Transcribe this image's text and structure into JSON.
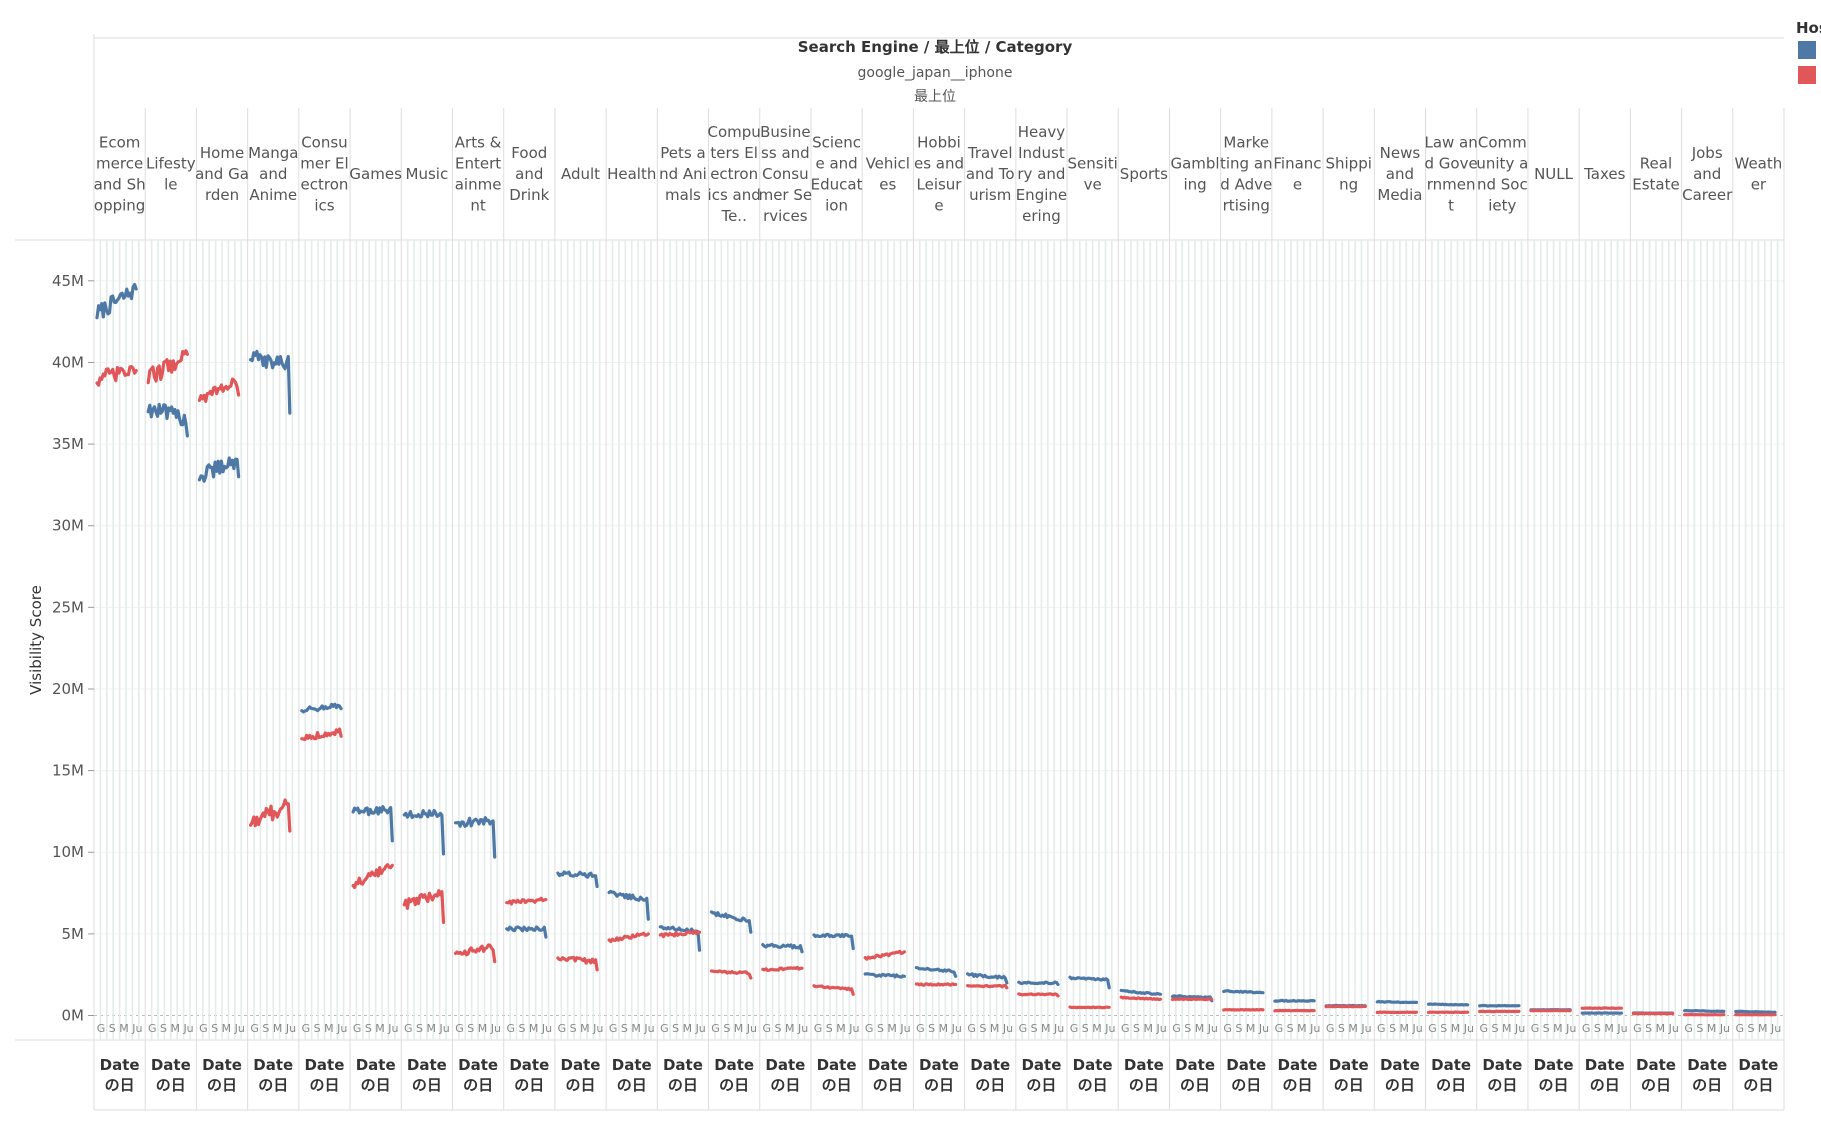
{
  "header": {
    "title": "Search Engine / 最上位 / Category",
    "engine": "google_japan__iphone",
    "level": "最上位"
  },
  "legend": {
    "title": "Hos",
    "colors": [
      "#4e79a7",
      "#e15759"
    ]
  },
  "footer": {
    "line1": "Date",
    "line2": "の日",
    "mini": "G S M Ju"
  },
  "chart_data": {
    "type": "line",
    "title": "",
    "ylabel": "Visibility Score",
    "ylim": [
      -1500000,
      47500000
    ],
    "yticks": [
      0,
      5000000,
      10000000,
      15000000,
      20000000,
      25000000,
      30000000,
      35000000,
      40000000,
      45000000
    ],
    "ytick_labels": [
      "0M",
      "5M",
      "10M",
      "15M",
      "20M",
      "25M",
      "30M",
      "35M",
      "40M",
      "45M"
    ],
    "legend_position": "top-right",
    "series_colors": [
      "#4e79a7",
      "#e15759"
    ],
    "categories": [
      {
        "label": "Ecommerce and Shopping",
        "lines": [
          "Ecom",
          "merce",
          "and Sh",
          "opping"
        ],
        "blue": {
          "start": 43.0,
          "end": 44.5,
          "drop": 0,
          "noise": 1.0
        },
        "red": {
          "start": 39.0,
          "end": 39.5,
          "drop": 0,
          "noise": 1.0
        }
      },
      {
        "label": "Lifestyle",
        "lines": [
          "Lifesty",
          "le"
        ],
        "blue": {
          "start": 37.2,
          "end": 36.5,
          "drop": 1.0,
          "noise": 1.0
        },
        "red": {
          "start": 39.0,
          "end": 40.5,
          "drop": 0,
          "noise": 1.1
        }
      },
      {
        "label": "Home and Garden",
        "lines": [
          "Home",
          "and Ga",
          "rden"
        ],
        "blue": {
          "start": 33.0,
          "end": 34.0,
          "drop": 1.0,
          "noise": 1.0
        },
        "red": {
          "start": 37.8,
          "end": 38.8,
          "drop": 0.8,
          "noise": 0.7
        }
      },
      {
        "label": "Manga and Anime",
        "lines": [
          "Manga",
          "and",
          "Anime"
        ],
        "blue": {
          "start": 40.3,
          "end": 39.9,
          "drop": 3.0,
          "noise": 0.9
        },
        "red": {
          "start": 11.8,
          "end": 13.0,
          "drop": 1.7,
          "noise": 1.0
        }
      },
      {
        "label": "Consumer Electronics",
        "lines": [
          "Consu",
          "mer El",
          "ectron",
          "ics"
        ],
        "blue": {
          "start": 18.7,
          "end": 19.0,
          "drop": 0.2,
          "noise": 0.3
        },
        "red": {
          "start": 17.0,
          "end": 17.4,
          "drop": 0.3,
          "noise": 0.4
        }
      },
      {
        "label": "Games",
        "lines": [
          "Games"
        ],
        "blue": {
          "start": 12.5,
          "end": 12.6,
          "drop": 1.9,
          "noise": 0.5
        },
        "red": {
          "start": 8.0,
          "end": 9.2,
          "drop": 0,
          "noise": 0.5
        }
      },
      {
        "label": "Music",
        "lines": [
          "Music"
        ],
        "blue": {
          "start": 12.3,
          "end": 12.4,
          "drop": 2.5,
          "noise": 0.4
        },
        "red": {
          "start": 6.8,
          "end": 7.5,
          "drop": 1.8,
          "noise": 0.6
        }
      },
      {
        "label": "Arts & Entertainment",
        "lines": [
          "Arts &",
          "Entert",
          "ainme",
          "nt"
        ],
        "blue": {
          "start": 11.8,
          "end": 11.9,
          "drop": 2.2,
          "noise": 0.5
        },
        "red": {
          "start": 3.8,
          "end": 4.2,
          "drop": 0.9,
          "noise": 0.4
        }
      },
      {
        "label": "Food and Drink",
        "lines": [
          "Food",
          "and",
          "Drink"
        ],
        "blue": {
          "start": 5.3,
          "end": 5.3,
          "drop": 0.5,
          "noise": 0.25
        },
        "red": {
          "start": 6.9,
          "end": 7.1,
          "drop": 0,
          "noise": 0.25
        }
      },
      {
        "label": "Adult",
        "lines": [
          "Adult"
        ],
        "blue": {
          "start": 8.7,
          "end": 8.6,
          "drop": 0.7,
          "noise": 0.3
        },
        "red": {
          "start": 3.5,
          "end": 3.3,
          "drop": 0.5,
          "noise": 0.3
        }
      },
      {
        "label": "Health",
        "lines": [
          "Health"
        ],
        "blue": {
          "start": 7.5,
          "end": 7.1,
          "drop": 1.2,
          "noise": 0.3
        },
        "red": {
          "start": 4.6,
          "end": 5.0,
          "drop": 0,
          "noise": 0.2
        }
      },
      {
        "label": "Pets and Animals",
        "lines": [
          "Pets a",
          "nd Ani",
          "mals"
        ],
        "blue": {
          "start": 5.4,
          "end": 5.2,
          "drop": 1.2,
          "noise": 0.2
        },
        "red": {
          "start": 4.9,
          "end": 5.1,
          "drop": 0,
          "noise": 0.2
        }
      },
      {
        "label": "Computers Electronics and Technology",
        "lines": [
          "Compu",
          "ters El",
          "ectron",
          "ics and",
          "Te.."
        ],
        "blue": {
          "start": 6.3,
          "end": 5.8,
          "drop": 0.7,
          "noise": 0.25
        },
        "red": {
          "start": 2.7,
          "end": 2.6,
          "drop": 0.3,
          "noise": 0.12
        }
      },
      {
        "label": "Business and Consumer Services",
        "lines": [
          "Busine",
          "ss and",
          "Consu",
          "mer Se",
          "rvices"
        ],
        "blue": {
          "start": 4.3,
          "end": 4.2,
          "drop": 0.3,
          "noise": 0.2
        },
        "red": {
          "start": 2.8,
          "end": 2.9,
          "drop": 0,
          "noise": 0.12
        }
      },
      {
        "label": "Science and Education",
        "lines": [
          "Scienc",
          "e and",
          "Educat",
          "ion"
        ],
        "blue": {
          "start": 4.9,
          "end": 4.9,
          "drop": 0.8,
          "noise": 0.15
        },
        "red": {
          "start": 1.8,
          "end": 1.6,
          "drop": 0.3,
          "noise": 0.1
        }
      },
      {
        "label": "Vehicles",
        "lines": [
          "Vehicl",
          "es"
        ],
        "blue": {
          "start": 2.5,
          "end": 2.4,
          "drop": 0,
          "noise": 0.15
        },
        "red": {
          "start": 3.5,
          "end": 3.9,
          "drop": 0,
          "noise": 0.15
        }
      },
      {
        "label": "Hobbies and Leisure",
        "lines": [
          "Hobbi",
          "es and",
          "Leisur",
          "e"
        ],
        "blue": {
          "start": 2.9,
          "end": 2.7,
          "drop": 0.3,
          "noise": 0.1
        },
        "red": {
          "start": 1.9,
          "end": 1.9,
          "drop": 0,
          "noise": 0.08
        }
      },
      {
        "label": "Travel and Tourism",
        "lines": [
          "Travel",
          "and To",
          "urism"
        ],
        "blue": {
          "start": 2.5,
          "end": 2.3,
          "drop": 0.3,
          "noise": 0.15
        },
        "red": {
          "start": 1.8,
          "end": 1.8,
          "drop": 0.1,
          "noise": 0.08
        }
      },
      {
        "label": "Heavy Industry and Engineering",
        "lines": [
          "Heavy",
          "Indust",
          "ry and",
          "Engine",
          "ering"
        ],
        "blue": {
          "start": 2.0,
          "end": 2.0,
          "drop": 0.1,
          "noise": 0.1
        },
        "red": {
          "start": 1.3,
          "end": 1.3,
          "drop": 0.1,
          "noise": 0.06
        }
      },
      {
        "label": "Sensitive",
        "lines": [
          "Sensiti",
          "ve"
        ],
        "blue": {
          "start": 2.3,
          "end": 2.2,
          "drop": 0.5,
          "noise": 0.1
        },
        "red": {
          "start": 0.5,
          "end": 0.5,
          "drop": 0,
          "noise": 0.04
        }
      },
      {
        "label": "Sports",
        "lines": [
          "Sports"
        ],
        "blue": {
          "start": 1.5,
          "end": 1.3,
          "drop": 0,
          "noise": 0.08
        },
        "red": {
          "start": 1.1,
          "end": 1.0,
          "drop": 0,
          "noise": 0.06
        }
      },
      {
        "label": "Gambling",
        "lines": [
          "Gambl",
          "ing"
        ],
        "blue": {
          "start": 1.2,
          "end": 1.1,
          "drop": 0.2,
          "noise": 0.07
        },
        "red": {
          "start": 1.0,
          "end": 1.0,
          "drop": 0,
          "noise": 0.05
        }
      },
      {
        "label": "Marketing and Advertising",
        "lines": [
          "Marke",
          "ting an",
          "d Adve",
          "rtising"
        ],
        "blue": {
          "start": 1.5,
          "end": 1.4,
          "drop": 0,
          "noise": 0.07
        },
        "red": {
          "start": 0.35,
          "end": 0.35,
          "drop": 0,
          "noise": 0.03
        }
      },
      {
        "label": "Finance",
        "lines": [
          "Financ",
          "e"
        ],
        "blue": {
          "start": 0.9,
          "end": 0.9,
          "drop": 0,
          "noise": 0.05
        },
        "red": {
          "start": 0.3,
          "end": 0.3,
          "drop": 0,
          "noise": 0.03
        }
      },
      {
        "label": "Shipping",
        "lines": [
          "Shippi",
          "ng"
        ],
        "blue": {
          "start": 0.6,
          "end": 0.6,
          "drop": 0,
          "noise": 0.04
        },
        "red": {
          "start": 0.55,
          "end": 0.55,
          "drop": 0,
          "noise": 0.03
        }
      },
      {
        "label": "News and Media",
        "lines": [
          "News",
          "and",
          "Media"
        ],
        "blue": {
          "start": 0.85,
          "end": 0.8,
          "drop": 0,
          "noise": 0.05
        },
        "red": {
          "start": 0.2,
          "end": 0.2,
          "drop": 0,
          "noise": 0.03
        }
      },
      {
        "label": "Law and Government",
        "lines": [
          "Law an",
          "d Gove",
          "rnmen",
          "t"
        ],
        "blue": {
          "start": 0.7,
          "end": 0.65,
          "drop": 0,
          "noise": 0.04
        },
        "red": {
          "start": 0.2,
          "end": 0.2,
          "drop": 0,
          "noise": 0.03
        }
      },
      {
        "label": "Community and Society",
        "lines": [
          "Comm",
          "unity a",
          "nd Soc",
          "iety"
        ],
        "blue": {
          "start": 0.6,
          "end": 0.6,
          "drop": 0,
          "noise": 0.04
        },
        "red": {
          "start": 0.25,
          "end": 0.25,
          "drop": 0,
          "noise": 0.03
        }
      },
      {
        "label": "NULL",
        "lines": [
          "NULL"
        ],
        "blue": {
          "start": 0.35,
          "end": 0.35,
          "drop": 0,
          "noise": 0.02
        },
        "red": {
          "start": 0.3,
          "end": 0.3,
          "drop": 0,
          "noise": 0.02
        }
      },
      {
        "label": "Taxes",
        "lines": [
          "Taxes"
        ],
        "blue": {
          "start": 0.15,
          "end": 0.15,
          "drop": 0,
          "noise": 0.02
        },
        "red": {
          "start": 0.45,
          "end": 0.45,
          "drop": 0,
          "noise": 0.03
        }
      },
      {
        "label": "Real Estate",
        "lines": [
          "Real",
          "Estate"
        ],
        "blue": {
          "start": 0.15,
          "end": 0.15,
          "drop": 0,
          "noise": 0.02
        },
        "red": {
          "start": 0.12,
          "end": 0.12,
          "drop": 0,
          "noise": 0.02
        }
      },
      {
        "label": "Jobs and Career",
        "lines": [
          "Jobs",
          "and",
          "Career"
        ],
        "blue": {
          "start": 0.3,
          "end": 0.25,
          "drop": 0,
          "noise": 0.03
        },
        "red": {
          "start": 0.05,
          "end": 0.05,
          "drop": 0,
          "noise": 0.02
        }
      },
      {
        "label": "Weather",
        "lines": [
          "Weath",
          "er"
        ],
        "blue": {
          "start": 0.25,
          "end": 0.2,
          "drop": 0,
          "noise": 0.03
        },
        "red": {
          "start": 0.05,
          "end": 0.05,
          "drop": 0,
          "noise": 0.02
        }
      }
    ]
  }
}
